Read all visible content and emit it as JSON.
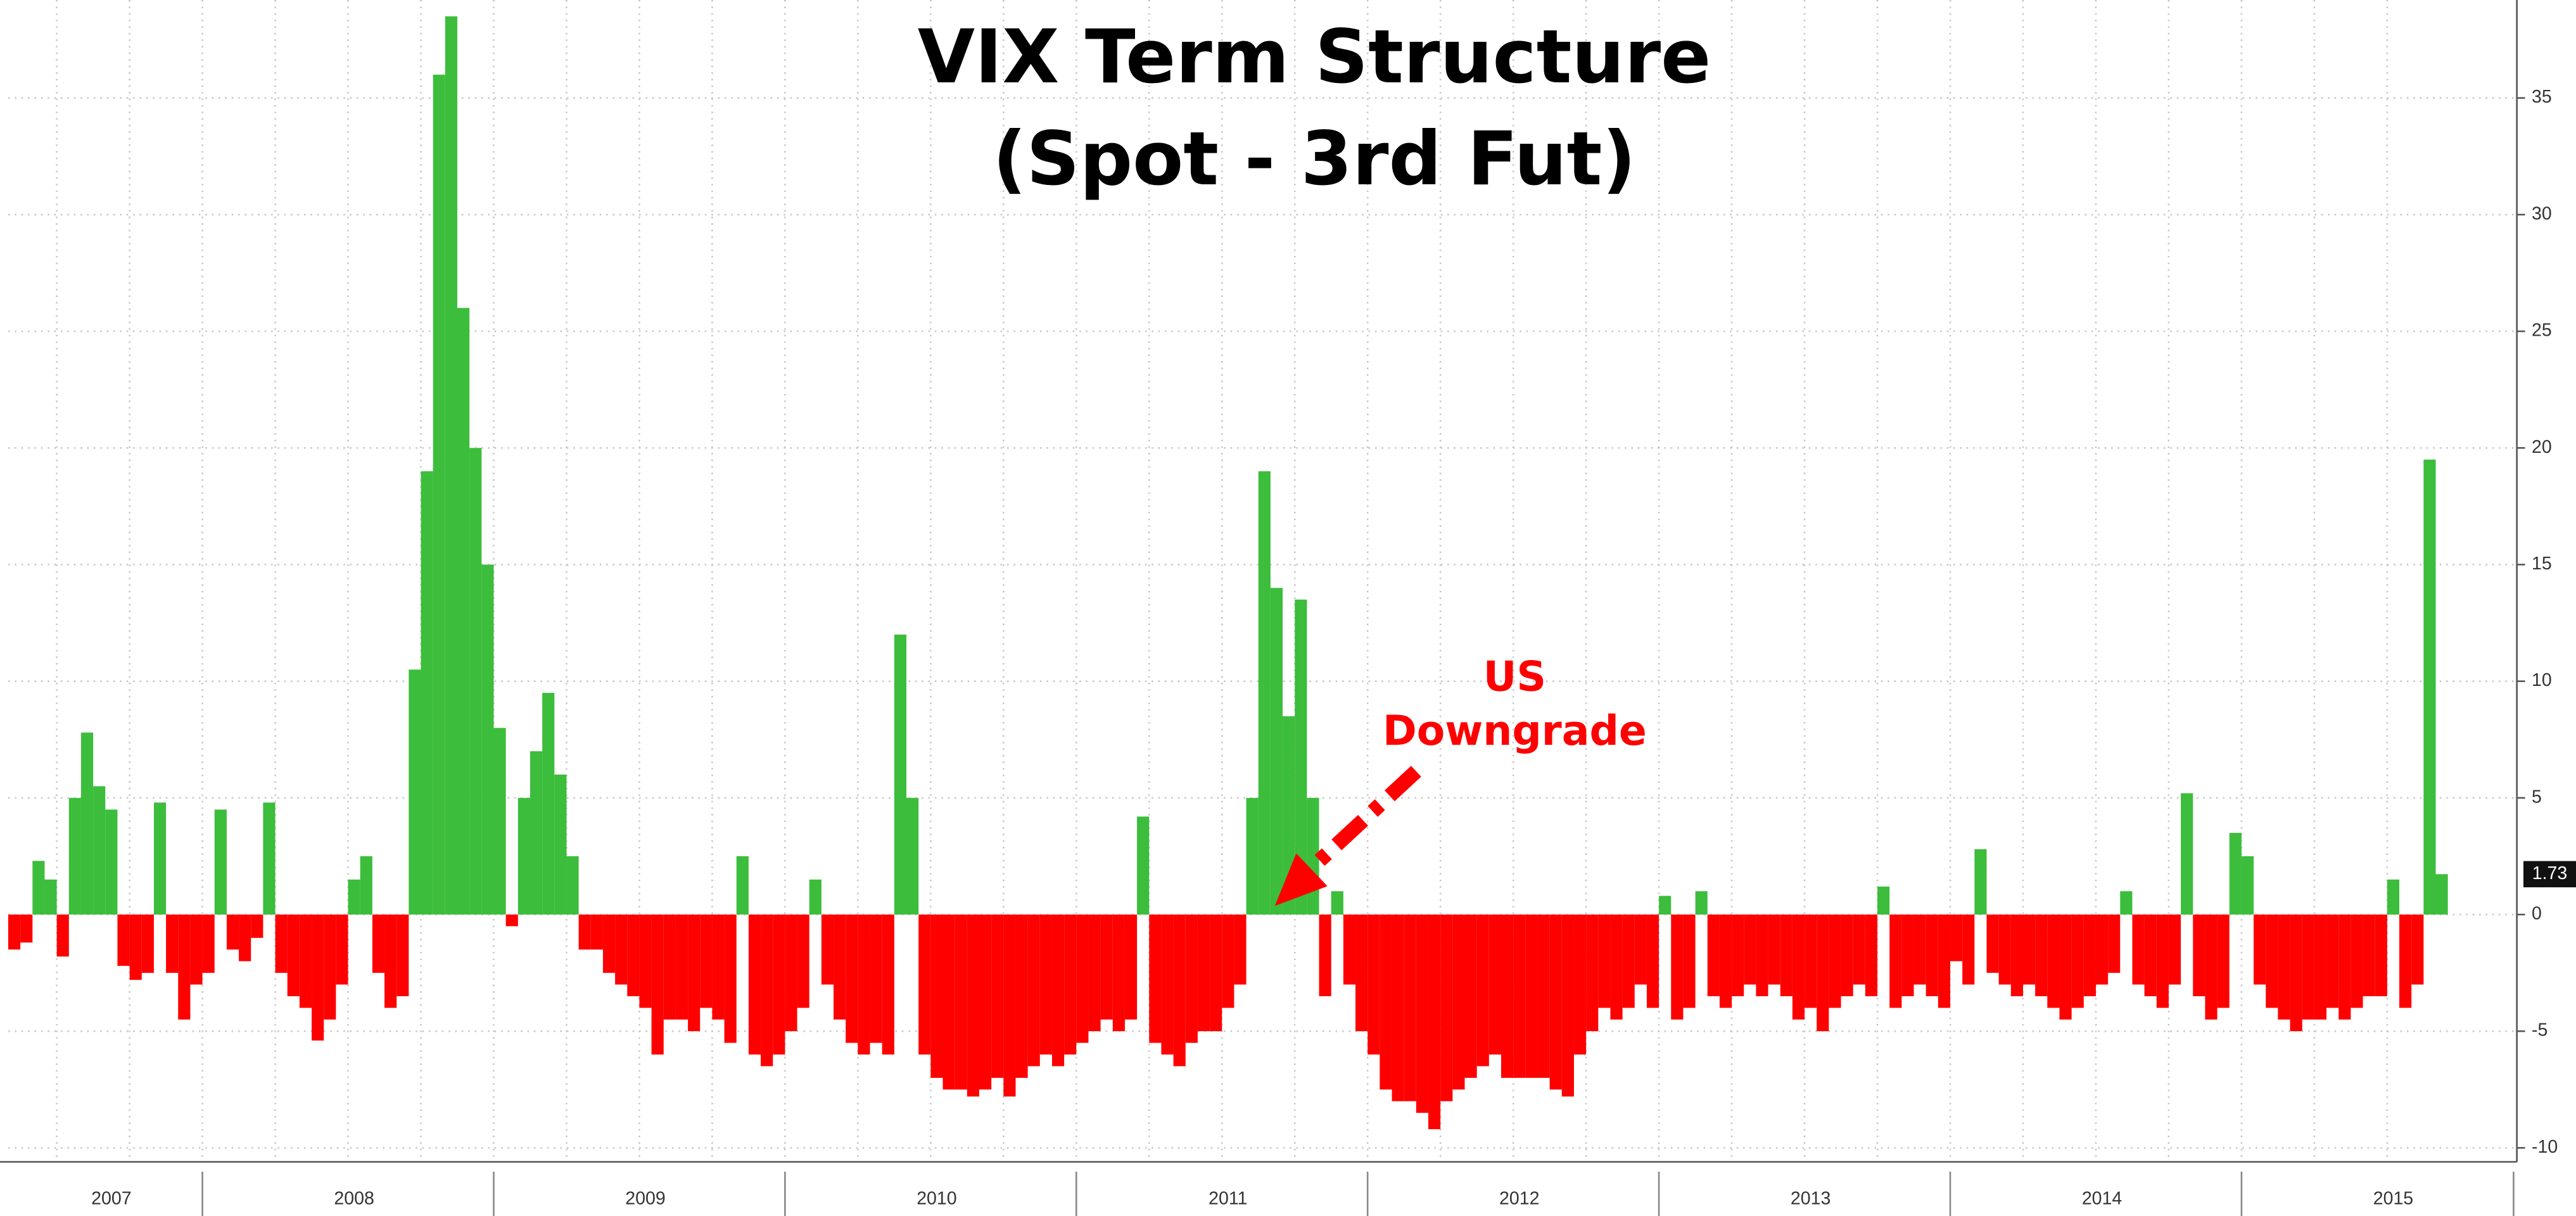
{
  "chart_data": {
    "type": "bar",
    "title": "VIX Term Structure",
    "subtitle": "(Spot - 3rd Fut)",
    "annotation": [
      "US",
      "Downgrade"
    ],
    "categories": [
      null,
      null,
      null,
      null,
      null,
      null,
      null,
      null,
      "2007",
      null,
      null,
      null,
      null,
      null,
      null,
      null,
      null,
      null,
      null,
      null,
      null,
      null,
      null,
      null,
      null,
      null,
      null,
      null,
      "2008",
      null,
      null,
      null,
      null,
      null,
      null,
      null,
      null,
      null,
      null,
      null,
      null,
      null,
      null,
      null,
      null,
      null,
      null,
      null,
      null,
      null,
      null,
      null,
      "2009",
      null,
      null,
      null,
      null,
      null,
      null,
      null,
      null,
      null,
      null,
      null,
      null,
      null,
      null,
      null,
      null,
      null,
      null,
      null,
      null,
      null,
      null,
      null,
      "2010",
      null,
      null,
      null,
      null,
      null,
      null,
      null,
      null,
      null,
      null,
      null,
      null,
      null,
      null,
      null,
      null,
      null,
      null,
      null,
      null,
      null,
      null,
      null,
      "2011",
      null,
      null,
      null,
      null,
      null,
      null,
      null,
      null,
      null,
      null,
      null,
      null,
      null,
      null,
      null,
      null,
      null,
      null,
      null,
      null,
      null,
      null,
      null,
      "2012",
      null,
      null,
      null,
      null,
      null,
      null,
      null,
      null,
      null,
      null,
      null,
      null,
      null,
      null,
      null,
      null,
      null,
      null,
      null,
      null,
      null,
      null,
      null,
      "2013",
      null,
      null,
      null,
      null,
      null,
      null,
      null,
      null,
      null,
      null,
      null,
      null,
      null,
      null,
      null,
      null,
      null,
      null,
      null,
      null,
      null,
      null,
      null,
      "2014",
      null,
      null,
      null,
      null,
      null,
      null,
      null,
      null,
      null,
      null,
      null,
      null,
      null,
      null,
      null,
      null,
      null,
      null,
      null,
      null,
      null,
      null,
      null,
      "2015",
      null,
      null,
      null,
      null
    ],
    "series": [
      {
        "color": "#3cbd3c",
        "negative_color": "#ff0000",
        "values": [
          -1.5,
          -1.2,
          2.3,
          1.5,
          -1.8,
          5,
          7.8,
          5.5,
          4.5,
          -2.2,
          -2.8,
          -2.5,
          4.8,
          -2.5,
          -4.5,
          -3,
          -2.5,
          4.5,
          -1.5,
          -2,
          -1,
          4.8,
          -2.5,
          -3.5,
          -4,
          -5.4,
          -4.5,
          -3,
          1.5,
          2.5,
          -2.5,
          -4,
          -3.5,
          10.5,
          19,
          36,
          38.5,
          26,
          20,
          15,
          8,
          -0.5,
          5,
          7,
          9.5,
          6,
          2.5,
          -1.5,
          -1.5,
          -2.5,
          -3,
          -3.5,
          -4,
          -6,
          -4.5,
          -4.5,
          -5,
          -4,
          -4.5,
          -5.5,
          2.5,
          -6,
          -6.5,
          -6,
          -5,
          -4,
          1.5,
          -3,
          -4.5,
          -5.5,
          -6,
          -5.5,
          -6,
          12,
          5,
          -6,
          -7,
          -7.5,
          -7.5,
          -7.8,
          -7.5,
          -7,
          -7.8,
          -7,
          -6.5,
          -6,
          -6.5,
          -6,
          -5.5,
          -5,
          -4.5,
          -5,
          -4.5,
          4.2,
          -5.5,
          -6,
          -6.5,
          -5.5,
          -5,
          -5,
          -4,
          -3,
          5,
          19,
          14,
          8.5,
          13.5,
          5,
          -3.5,
          1,
          -3,
          -5,
          -6,
          -7.5,
          -8,
          -8,
          -8.5,
          -9.2,
          -8,
          -7.5,
          -7,
          -6.5,
          -6,
          -7,
          -7,
          -7,
          -7,
          -7.5,
          -7.8,
          -6,
          -5,
          -4,
          -4.5,
          -4,
          -3,
          -4,
          0.8,
          -4.5,
          -4,
          1,
          -3.5,
          -4,
          -3.5,
          -3,
          -3.5,
          -3,
          -3.5,
          -4.5,
          -4,
          -5,
          -4,
          -3.5,
          -3,
          -3.5,
          1.2,
          -4,
          -3.5,
          -3,
          -3.5,
          -4,
          -2,
          -3,
          2.8,
          -2.5,
          -3,
          -3.5,
          -3,
          -3.5,
          -4,
          -4.5,
          -4,
          -3.5,
          -3,
          -2.5,
          1,
          -3,
          -3.5,
          -4,
          -3,
          5.2,
          -3.5,
          -4.5,
          -4,
          3.5,
          2.5,
          -3,
          -4,
          -4.5,
          -5,
          -4.5,
          -4.5,
          -4,
          -4.5,
          -4,
          -3.5,
          -3.5,
          1.5,
          -4,
          -3,
          19.5,
          1.73
        ]
      }
    ],
    "ylim": [
      -10.6,
      39.2
    ],
    "yticks": [
      -10,
      -5,
      0,
      5,
      10,
      15,
      20,
      25,
      30,
      35
    ],
    "y_axis_side": "right",
    "grid": true
  }
}
